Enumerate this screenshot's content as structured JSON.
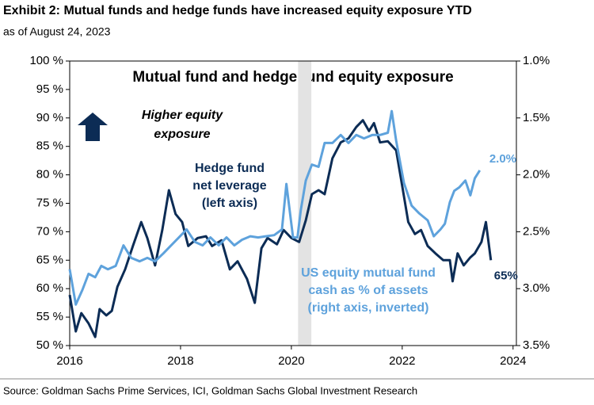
{
  "chart_data": {
    "type": "line",
    "title": "Exhibit 2: Mutual funds and hedge funds have increased equity exposure YTD",
    "subtitle": "as of August 24, 2023",
    "plot_title": "Mutual fund and hedge fund equity exposure",
    "source": "Source: Goldman Sachs Prime Services, ICI, Goldman Sachs Global Investment Research",
    "annotation": [
      "Higher equity",
      "exposure"
    ],
    "xlim": [
      2016,
      2024.06
    ],
    "xticks": [
      2016,
      2018,
      2020,
      2022,
      2024
    ],
    "ylim": [
      50,
      100
    ],
    "yticks": [
      {
        "value": 50,
        "label": "50 %"
      },
      {
        "value": 55,
        "label": "55 %"
      },
      {
        "value": 60,
        "label": "60 %"
      },
      {
        "value": 65,
        "label": "65 %"
      },
      {
        "value": 70,
        "label": "70 %"
      },
      {
        "value": 75,
        "label": "75 %"
      },
      {
        "value": 80,
        "label": "80 %"
      },
      {
        "value": 85,
        "label": "85 %"
      },
      {
        "value": 90,
        "label": "90 %"
      },
      {
        "value": 95,
        "label": "95 %"
      },
      {
        "value": 100,
        "label": "100 %"
      }
    ],
    "y2lim": [
      1.0,
      3.5
    ],
    "y2_inverted": true,
    "y2ticks": [
      {
        "value": 1.0,
        "label": "1.0%"
      },
      {
        "value": 1.5,
        "label": "1.5%"
      },
      {
        "value": 2.0,
        "label": "2.0%"
      },
      {
        "value": 2.5,
        "label": "2.5%"
      },
      {
        "value": 3.0,
        "label": "3.0%"
      },
      {
        "value": 3.5,
        "label": "3.5%"
      }
    ],
    "shaded_x": [
      2020.12,
      2020.36
    ],
    "series": [
      {
        "name": [
          "Hedge fund",
          "net leverage",
          "(left axis)"
        ],
        "color": "#0c2c55",
        "axis": "y",
        "x": [
          2016.0,
          2016.11,
          2016.21,
          2016.34,
          2016.46,
          2016.54,
          2016.66,
          2016.76,
          2016.86,
          2017.0,
          2017.14,
          2017.29,
          2017.4,
          2017.54,
          2017.67,
          2017.79,
          2017.91,
          2018.03,
          2018.14,
          2018.31,
          2018.46,
          2018.57,
          2018.74,
          2018.89,
          2019.03,
          2019.2,
          2019.34,
          2019.46,
          2019.57,
          2019.74,
          2019.86,
          2020.0,
          2020.14,
          2020.26,
          2020.37,
          2020.49,
          2020.6,
          2020.74,
          2020.89,
          2021.03,
          2021.17,
          2021.29,
          2021.4,
          2021.49,
          2021.6,
          2021.74,
          2021.89,
          2022.0,
          2022.11,
          2022.23,
          2022.34,
          2022.46,
          2022.6,
          2022.74,
          2022.86,
          2022.91,
          2023.0,
          2023.11,
          2023.23,
          2023.31,
          2023.43,
          2023.51,
          2023.6
        ],
        "values": [
          58.9,
          52.5,
          55.7,
          53.9,
          51.5,
          56.4,
          55.3,
          56.1,
          60.3,
          63.4,
          67.5,
          71.7,
          68.9,
          64.1,
          70.3,
          77.3,
          73.1,
          71.7,
          67.5,
          68.9,
          69.2,
          67.5,
          68.5,
          63.4,
          64.8,
          61.7,
          57.5,
          67.1,
          68.9,
          67.8,
          70.3,
          68.9,
          68.2,
          72.0,
          76.6,
          77.3,
          76.6,
          82.9,
          85.7,
          86.4,
          88.4,
          89.6,
          87.7,
          89.1,
          85.7,
          85.9,
          84.3,
          78.0,
          71.7,
          69.6,
          70.3,
          67.5,
          66.2,
          65.0,
          65.0,
          61.3,
          66.2,
          64.1,
          65.5,
          66.2,
          68.2,
          71.7,
          65.0
        ],
        "value_labels": [
          null,
          null,
          null,
          null,
          null,
          null,
          null,
          null,
          null,
          null,
          null,
          null,
          null,
          null,
          null,
          null,
          null,
          null,
          null,
          null,
          null,
          null,
          null,
          null,
          null,
          null,
          null,
          null,
          null,
          null,
          null,
          null,
          null,
          null,
          null,
          null,
          null,
          null,
          null,
          null,
          null,
          null,
          null,
          null,
          null,
          null,
          null,
          null,
          null,
          null,
          null,
          null,
          null,
          null,
          null,
          null,
          null,
          null,
          null,
          null,
          null,
          null,
          "65%"
        ]
      },
      {
        "name": [
          "US equity mutual fund",
          "cash as % of assets",
          "(right axis, inverted)"
        ],
        "color": "#5ea2dc",
        "axis": "y2",
        "x": [
          2016.0,
          2016.11,
          2016.23,
          2016.34,
          2016.46,
          2016.57,
          2016.69,
          2016.83,
          2016.97,
          2017.11,
          2017.26,
          2017.4,
          2017.54,
          2017.69,
          2017.83,
          2017.97,
          2018.11,
          2018.26,
          2018.4,
          2018.54,
          2018.69,
          2018.83,
          2018.97,
          2019.11,
          2019.26,
          2019.4,
          2019.54,
          2019.69,
          2019.83,
          2019.91,
          2020.03,
          2020.11,
          2020.17,
          2020.26,
          2020.37,
          2020.49,
          2020.6,
          2020.74,
          2020.89,
          2021.03,
          2021.17,
          2021.31,
          2021.46,
          2021.6,
          2021.74,
          2021.81,
          2021.89,
          2022.03,
          2022.17,
          2022.31,
          2022.46,
          2022.57,
          2022.69,
          2022.77,
          2022.86,
          2022.94,
          2023.03,
          2023.14,
          2023.23,
          2023.31,
          2023.4
        ],
        "values": [
          2.83,
          3.14,
          3.01,
          2.87,
          2.9,
          2.8,
          2.83,
          2.8,
          2.62,
          2.73,
          2.76,
          2.73,
          2.76,
          2.69,
          2.62,
          2.55,
          2.48,
          2.59,
          2.62,
          2.55,
          2.62,
          2.55,
          2.62,
          2.57,
          2.54,
          2.55,
          2.54,
          2.53,
          2.48,
          2.08,
          2.55,
          2.55,
          2.31,
          2.05,
          1.91,
          1.93,
          1.72,
          1.72,
          1.65,
          1.72,
          1.65,
          1.68,
          1.65,
          1.65,
          1.63,
          1.44,
          1.7,
          2.07,
          2.27,
          2.34,
          2.4,
          2.54,
          2.48,
          2.43,
          2.24,
          2.14,
          2.11,
          2.05,
          2.18,
          2.03,
          1.96
        ],
        "value_labels": [
          null,
          null,
          null,
          null,
          null,
          null,
          null,
          null,
          null,
          null,
          null,
          null,
          null,
          null,
          null,
          null,
          null,
          null,
          null,
          null,
          null,
          null,
          null,
          null,
          null,
          null,
          null,
          null,
          null,
          null,
          null,
          null,
          null,
          null,
          null,
          null,
          null,
          null,
          null,
          null,
          null,
          null,
          null,
          null,
          null,
          null,
          null,
          null,
          null,
          null,
          null,
          null,
          null,
          null,
          null,
          null,
          null,
          null,
          null,
          null,
          "2.0%"
        ]
      }
    ]
  }
}
